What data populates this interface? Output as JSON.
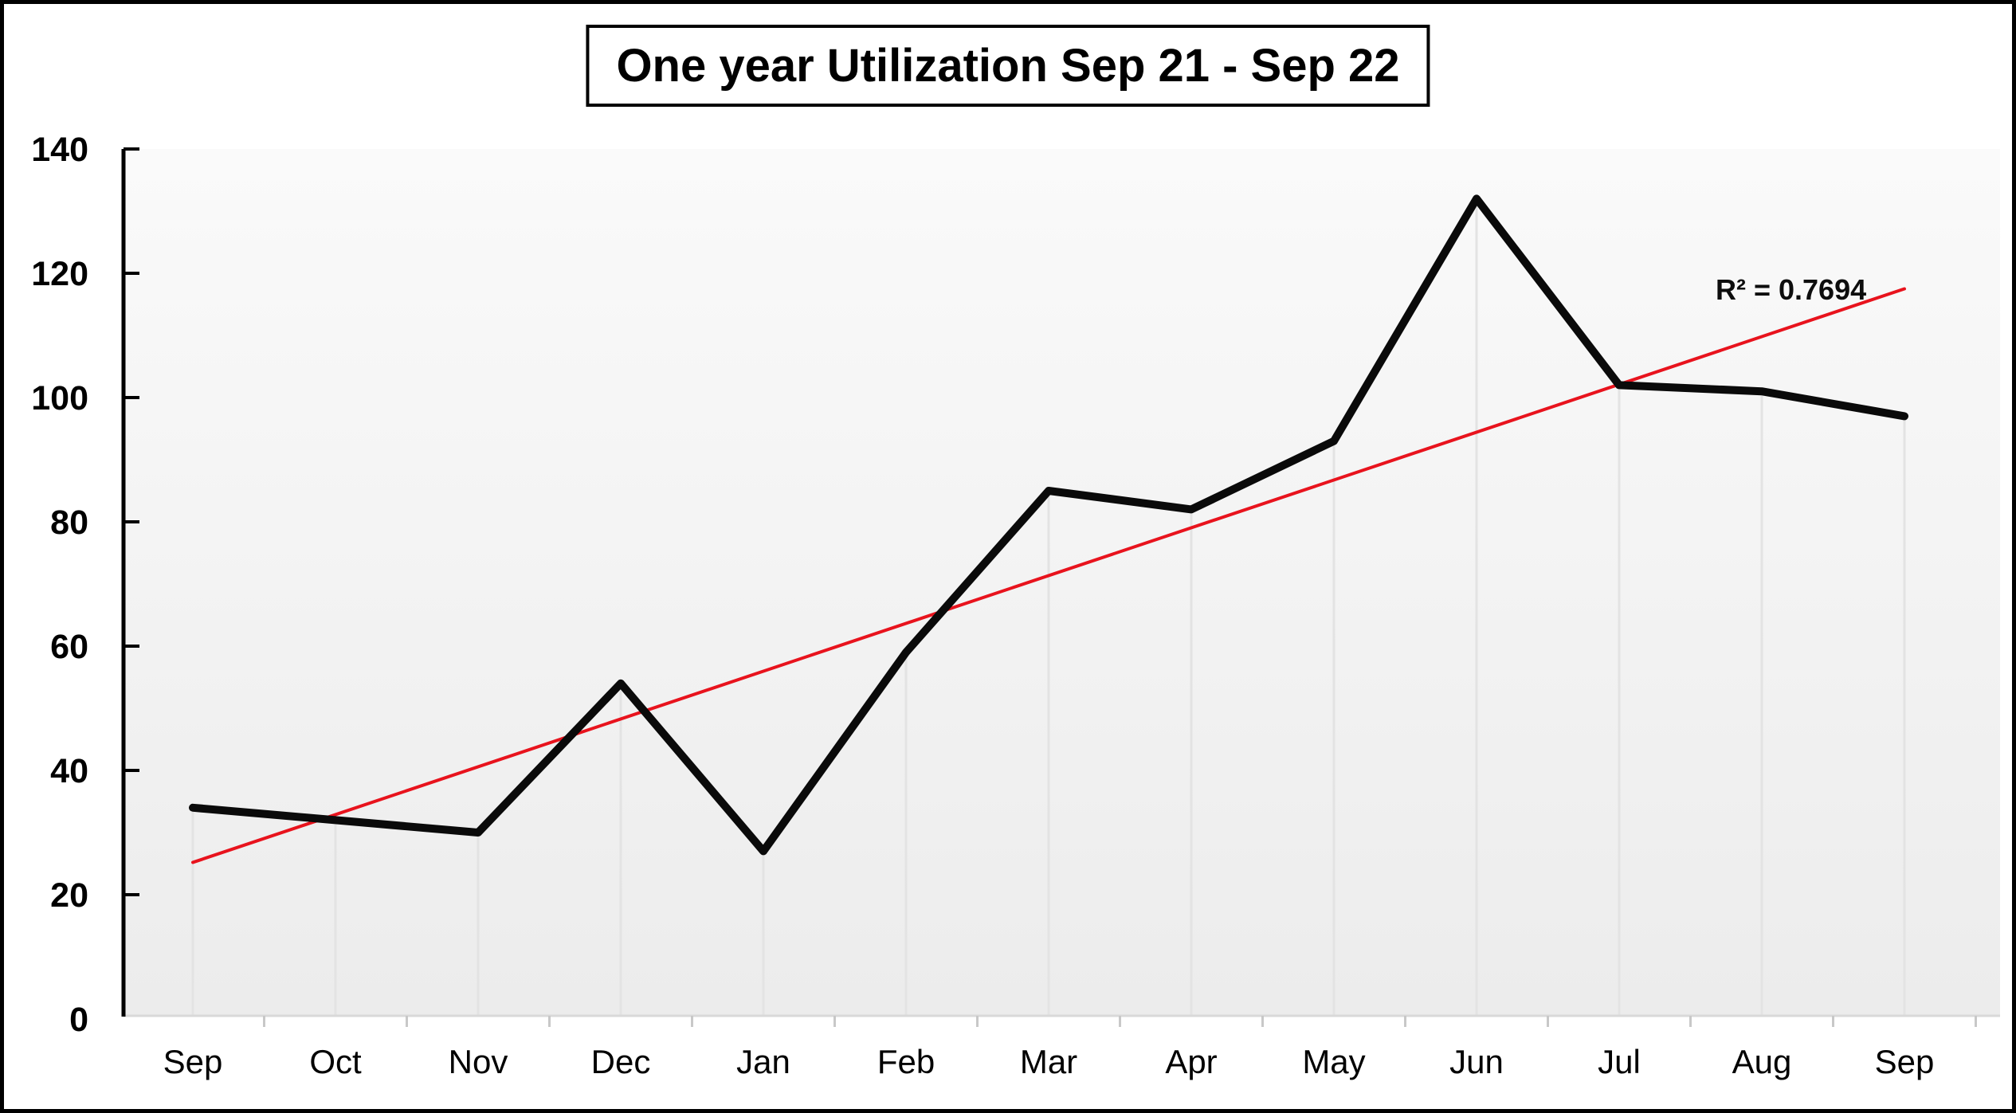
{
  "chart_data": {
    "type": "line",
    "title": "One year Utilization Sep 21 - Sep 22",
    "categories": [
      "Sep",
      "Oct",
      "Nov",
      "Dec",
      "Jan",
      "Feb",
      "Mar",
      "Apr",
      "May",
      "Jun",
      "Jul",
      "Aug",
      "Sep"
    ],
    "series": [
      {
        "name": "Utilization",
        "values": [
          34,
          32,
          30,
          54,
          27,
          59,
          85,
          82,
          93,
          132,
          102,
          101,
          97
        ],
        "color": "#0a0a0a"
      }
    ],
    "trendline": {
      "type": "linear",
      "start_value": 25.2,
      "end_value": 117.5,
      "annotation": "R² = 0.7694",
      "color": "#e8131d"
    },
    "xlabel": "",
    "ylabel": "",
    "ylim": [
      0,
      140
    ],
    "y_tick_step": 20,
    "y_tick_labels": [
      "0",
      "20",
      "40",
      "60",
      "80",
      "100",
      "120",
      "140"
    ],
    "legend_position": "none",
    "grid": "vertical drop lines from each data point"
  },
  "colors": {
    "series_line": "#0a0a0a",
    "trend_line": "#e8131d",
    "plot_bg_top": "#fafafa",
    "plot_bg_bottom": "#ececec",
    "drop_line": "#e3e3e3",
    "baseline": "#d9d9d9",
    "x_tick": "#c8c8c8",
    "axis": "#000000",
    "frame_border": "#000000"
  }
}
